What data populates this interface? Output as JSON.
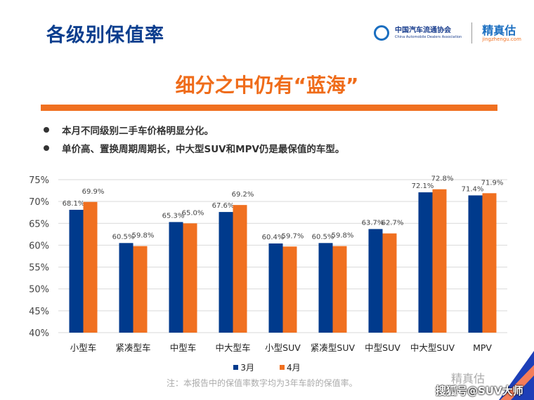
{
  "header": {
    "title": "各级别保值率",
    "logo_cada_cn": "中国汽车流通协会",
    "logo_cada_en": "China Automobile Dealers Association",
    "logo_jzg_cn": "精真估",
    "logo_jzg_url": "jingzhengu.com"
  },
  "subtitle": "细分之中仍有“蓝海”",
  "bullets": [
    "本月不同级别二手车价格明显分化。",
    "单价高、置换周期周期长，中大型SUV和MPV仍是最保值的车型。"
  ],
  "note": "注：本报告中的保值率数字均为3年车龄的保值率。",
  "watermark": "精真估",
  "source_tag": "搜狐号@SUV大师",
  "colors": {
    "blue": "#003a8c",
    "orange": "#f07020",
    "accent": "#ef6c1a"
  },
  "chart_data": {
    "type": "bar",
    "categories": [
      "小型车",
      "紧凑型车",
      "中型车",
      "中大型车",
      "小型SUV",
      "紧凑型SUV",
      "中型SUV",
      "中大型SUV",
      "MPV"
    ],
    "series": [
      {
        "name": "3月",
        "values": [
          68.1,
          60.5,
          65.3,
          67.6,
          60.4,
          60.5,
          63.7,
          72.1,
          71.4
        ],
        "labels": [
          "68.1%",
          "60.5%",
          "65.3%",
          "67.6%",
          "60.4%",
          "60.5%",
          "63.7%",
          "72.1%",
          "71.4%"
        ]
      },
      {
        "name": "4月",
        "values": [
          69.9,
          59.8,
          65.0,
          69.2,
          59.7,
          59.8,
          62.7,
          72.8,
          71.9
        ],
        "labels": [
          "69.9%",
          "59.8%",
          "65.0%",
          "69.2%",
          "59.7%",
          "59.8%",
          "62.7%",
          "72.8%",
          "71.9%"
        ]
      }
    ],
    "yticks": [
      "40%",
      "45%",
      "50%",
      "55%",
      "60%",
      "65%",
      "70%",
      "75%"
    ],
    "ylim": [
      40,
      75
    ],
    "grid": true,
    "legend": "bottom"
  }
}
